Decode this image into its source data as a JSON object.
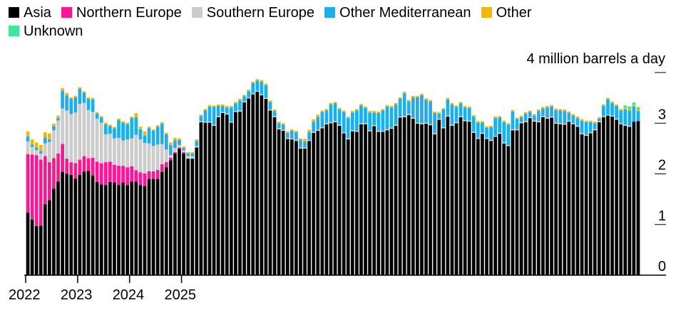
{
  "chart_data": {
    "type": "bar",
    "stacked": true,
    "title": "",
    "ylabel": "4 million barrels a day",
    "ylim": [
      0,
      4
    ],
    "yticks": [
      "0",
      "1",
      "2",
      "3"
    ],
    "x_tick_labels": [
      "2022",
      "2023",
      "2024",
      "2025"
    ],
    "x_start": "2022-01",
    "x_end": "2025-06",
    "legend_position": "top-left",
    "series": [
      {
        "name": "Asia",
        "color": "#000000",
        "values": [
          1.24,
          1.1,
          0.97,
          0.98,
          1.4,
          1.48,
          1.71,
          1.85,
          2.04,
          2.0,
          1.98,
          1.91,
          1.98,
          2.05,
          2.06,
          1.97,
          1.84,
          1.79,
          1.78,
          1.84,
          1.83,
          1.78,
          1.83,
          1.78,
          1.85,
          1.85,
          1.78,
          1.76,
          1.9,
          1.9,
          1.9,
          2.04,
          2.13,
          2.27,
          2.4,
          2.5,
          2.4,
          2.3,
          2.3,
          2.52,
          3.02,
          3.01,
          3.01,
          2.95,
          3.12,
          3.2,
          3.17,
          3.01,
          3.22,
          3.23,
          3.41,
          3.49,
          3.57,
          3.62,
          3.55,
          3.48,
          3.25,
          3.12,
          2.88,
          2.85,
          2.69,
          2.68,
          2.65,
          2.5,
          2.5,
          2.65,
          2.81,
          2.85,
          2.9,
          2.98,
          3.0,
          3.02,
          2.95,
          2.8,
          2.68,
          2.84,
          2.83,
          2.98,
          2.98,
          2.84,
          2.94,
          2.83,
          2.83,
          2.86,
          2.89,
          2.95,
          3.11,
          3.12,
          3.16,
          3.09,
          2.99,
          2.98,
          2.99,
          2.96,
          2.78,
          3.07,
          2.9,
          3.13,
          2.95,
          3.0,
          3.12,
          3.04,
          3.03,
          2.81,
          2.69,
          2.79,
          2.69,
          2.65,
          2.73,
          2.79,
          2.6,
          2.55,
          2.86,
          2.86,
          3.0,
          3.02,
          3.1,
          3.03,
          3.02,
          3.12,
          3.09,
          3.11,
          2.99,
          2.98,
          2.97,
          3.03,
          2.98,
          2.93,
          2.78,
          2.75,
          2.8,
          2.86,
          3.02,
          3.12,
          3.15,
          3.13,
          3.07,
          2.98,
          2.95,
          2.93,
          3.03,
          3.04
        ]
      },
      {
        "name": "Northern Europe",
        "color": "#ff1493",
        "values": [
          1.15,
          1.28,
          1.4,
          1.3,
          0.95,
          0.75,
          0.6,
          0.55,
          0.55,
          0.3,
          0.25,
          0.3,
          0.3,
          0.3,
          0.25,
          0.35,
          0.4,
          0.42,
          0.45,
          0.4,
          0.35,
          0.38,
          0.33,
          0.35,
          0.3,
          0.22,
          0.25,
          0.25,
          0.15,
          0.15,
          0.18,
          0.15,
          0.1,
          0.05,
          0.03,
          0.02,
          0.03,
          0,
          0,
          0,
          0,
          0,
          0,
          0,
          0,
          0,
          0,
          0,
          0,
          0,
          0,
          0,
          0,
          0,
          0,
          0,
          0,
          0,
          0,
          0,
          0,
          0,
          0,
          0,
          0,
          0,
          0,
          0,
          0,
          0,
          0,
          0,
          0,
          0,
          0,
          0,
          0,
          0,
          0,
          0,
          0,
          0,
          0,
          0,
          0,
          0,
          0,
          0,
          0,
          0,
          0,
          0,
          0,
          0,
          0,
          0,
          0,
          0,
          0,
          0,
          0,
          0,
          0,
          0,
          0,
          0,
          0,
          0,
          0,
          0,
          0,
          0,
          0,
          0,
          0,
          0,
          0,
          0,
          0,
          0,
          0,
          0,
          0,
          0,
          0,
          0,
          0,
          0,
          0,
          0,
          0,
          0,
          0,
          0,
          0,
          0,
          0,
          0,
          0,
          0
        ]
      },
      {
        "name": "Southern Europe",
        "color": "#cccccc",
        "values": [
          0.25,
          0.15,
          0.1,
          0.12,
          0.25,
          0.4,
          0.55,
          0.65,
          0.7,
          0.95,
          0.95,
          1.0,
          1.1,
          1.05,
          0.95,
          0.9,
          0.85,
          0.8,
          0.55,
          0.55,
          0.52,
          0.55,
          0.5,
          0.55,
          0.55,
          0.7,
          0.65,
          0.6,
          0.55,
          0.5,
          0.5,
          0.4,
          0.25,
          0.05,
          0.08,
          0.05,
          0.03,
          0.05,
          0.05,
          0.03,
          0.02,
          0.02,
          0.02,
          0.02,
          0.02,
          0.02,
          0.02,
          0.02,
          0.02,
          0.02,
          0.02,
          0.02,
          0.02,
          0.02,
          0.02,
          0.02,
          0.02,
          0.02,
          0.02,
          0.02,
          0.02,
          0.02,
          0.02,
          0.02,
          0.02,
          0.02,
          0.02,
          0.02,
          0.02,
          0.02,
          0.02,
          0.02,
          0.02,
          0.02,
          0.02,
          0.02,
          0.02,
          0.02,
          0.02,
          0.02,
          0.02,
          0.02,
          0.02,
          0.02,
          0.02,
          0.02,
          0.02,
          0.02,
          0.02,
          0.02,
          0.02,
          0.02,
          0.02,
          0.02,
          0.02,
          0.02,
          0.02,
          0.02,
          0.02,
          0.02,
          0.02,
          0.02,
          0.02,
          0.02,
          0.02,
          0.02,
          0.02,
          0.02,
          0.02,
          0.02,
          0.02,
          0.02,
          0.02,
          0.02,
          0.02,
          0.02,
          0.02,
          0.02,
          0.02,
          0.02,
          0.02,
          0.02,
          0.02,
          0.02,
          0.02,
          0.02,
          0.02,
          0.02,
          0.02,
          0.02,
          0.02,
          0.02,
          0.02,
          0.02,
          0.02,
          0.02,
          0.02,
          0.02,
          0.02,
          0.02
        ]
      },
      {
        "name": "Other Mediterranean",
        "color": "#1ab0f0",
        "values": [
          0.1,
          0.05,
          0.05,
          0.05,
          0.12,
          0.05,
          0.08,
          0.05,
          0.35,
          0.3,
          0.3,
          0.3,
          0.3,
          0.2,
          0.22,
          0.25,
          0.1,
          0.1,
          0.2,
          0.15,
          0.2,
          0.35,
          0.35,
          0.3,
          0.4,
          0.35,
          0.2,
          0.15,
          0.3,
          0.3,
          0.35,
          0.4,
          0.3,
          0.2,
          0.15,
          0.1,
          0.05,
          0.05,
          0.05,
          0.1,
          0.1,
          0.22,
          0.3,
          0.35,
          0.2,
          0.12,
          0.12,
          0.28,
          0.15,
          0.2,
          0.1,
          0.12,
          0.2,
          0.2,
          0.25,
          0.25,
          0.15,
          0.1,
          0.1,
          0.1,
          0.1,
          0.15,
          0.15,
          0.15,
          0.12,
          0.15,
          0.2,
          0.25,
          0.3,
          0.25,
          0.35,
          0.35,
          0.3,
          0.4,
          0.4,
          0.35,
          0.4,
          0.35,
          0.3,
          0.35,
          0.25,
          0.35,
          0.4,
          0.45,
          0.4,
          0.4,
          0.35,
          0.45,
          0.25,
          0.4,
          0.5,
          0.55,
          0.45,
          0.45,
          0.4,
          0.1,
          0.35,
          0.32,
          0.4,
          0.3,
          0.25,
          0.25,
          0.25,
          0.3,
          0.3,
          0.2,
          0.2,
          0.25,
          0.35,
          0.3,
          0.4,
          0.4,
          0.35,
          0.2,
          0.1,
          0.15,
          0.1,
          0.1,
          0.2,
          0.15,
          0.2,
          0.2,
          0.25,
          0.25,
          0.25,
          0.15,
          0.15,
          0.15,
          0.25,
          0.25,
          0.2,
          0.12,
          0.05,
          0.2,
          0.3,
          0.25,
          0.25,
          0.25,
          0.3,
          0.3,
          0.3,
          0.2
        ]
      },
      {
        "name": "Other",
        "color": "#f5b800",
        "values": [
          0.1,
          0.1,
          0.1,
          0.12,
          0.1,
          0.12,
          0.05,
          0.05,
          0.05,
          0.05,
          0.03,
          0.03,
          0.03,
          0.03,
          0.03,
          0.03,
          0.03,
          0.03,
          0.03,
          0.03,
          0.03,
          0.03,
          0.03,
          0.03,
          0.03,
          0.08,
          0.05,
          0.08,
          0.03,
          0.03,
          0.03,
          0.03,
          0.03,
          0.05,
          0.05,
          0.03,
          0.03,
          0.03,
          0.03,
          0.03,
          0.03,
          0.03,
          0.03,
          0.03,
          0.03,
          0.03,
          0.03,
          0.03,
          0.03,
          0.03,
          0.03,
          0.03,
          0.03,
          0.03,
          0.03,
          0.03,
          0.03,
          0.03,
          0.03,
          0.03,
          0.03,
          0.03,
          0.03,
          0.03,
          0.05,
          0.05,
          0.05,
          0.05,
          0.03,
          0.03,
          0.03,
          0.03,
          0.03,
          0.03,
          0.03,
          0.03,
          0.03,
          0.03,
          0.03,
          0.03,
          0.03,
          0.03,
          0.03,
          0.03,
          0.03,
          0.03,
          0.03,
          0.03,
          0.03,
          0.03,
          0.03,
          0.03,
          0.03,
          0.03,
          0.03,
          0.03,
          0.03,
          0.03,
          0.03,
          0.03,
          0.03,
          0.03,
          0.03,
          0.03,
          0.03,
          0.03,
          0.03,
          0.03,
          0.03,
          0.03,
          0.03,
          0.03,
          0.03,
          0.03,
          0.03,
          0.03,
          0.03,
          0.03,
          0.03,
          0.03,
          0.03,
          0.03,
          0.03,
          0.03,
          0.03,
          0.03,
          0.03,
          0.03,
          0.03,
          0.03,
          0.03,
          0.03,
          0.03,
          0.03,
          0.03,
          0.03,
          0.03,
          0.03,
          0.03,
          0.03,
          0.03,
          0.03
        ]
      },
      {
        "name": "Unknown",
        "color": "#3ee89a",
        "values": [
          0,
          0,
          0,
          0,
          0,
          0,
          0,
          0,
          0,
          0,
          0,
          0,
          0,
          0,
          0,
          0,
          0,
          0,
          0,
          0,
          0,
          0,
          0,
          0,
          0,
          0,
          0,
          0,
          0,
          0,
          0,
          0,
          0,
          0,
          0,
          0,
          0,
          0,
          0,
          0,
          0,
          0,
          0,
          0,
          0,
          0,
          0,
          0,
          0,
          0,
          0,
          0,
          0,
          0,
          0,
          0,
          0,
          0,
          0,
          0,
          0,
          0,
          0,
          0,
          0,
          0,
          0,
          0,
          0,
          0,
          0,
          0,
          0,
          0,
          0,
          0,
          0,
          0,
          0,
          0,
          0,
          0,
          0,
          0,
          0,
          0,
          0,
          0,
          0,
          0,
          0,
          0,
          0,
          0,
          0,
          0,
          0,
          0,
          0,
          0,
          0,
          0,
          0,
          0,
          0,
          0,
          0,
          0,
          0,
          0,
          0,
          0,
          0,
          0,
          0,
          0,
          0,
          0,
          0,
          0,
          0,
          0,
          0,
          0,
          0,
          0,
          0,
          0,
          0,
          0,
          0,
          0,
          0,
          0,
          0,
          0,
          0,
          0,
          0.05,
          0.05,
          0.05,
          0.05
        ]
      }
    ]
  }
}
